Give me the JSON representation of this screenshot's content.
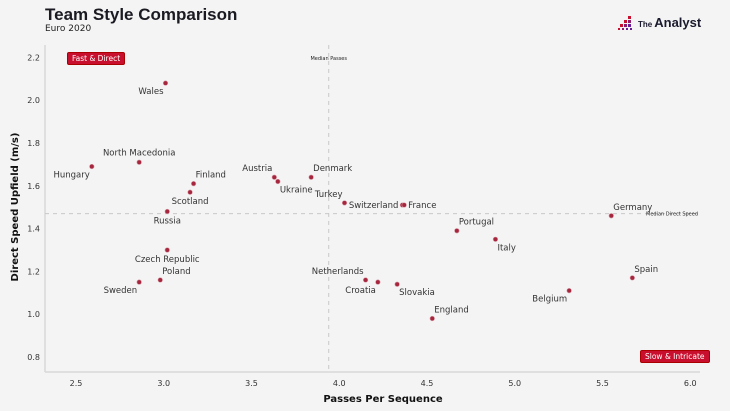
{
  "header": {
    "title": "Team Style Comparison",
    "subtitle": "Euro 2020",
    "brand": {
      "prefix": "The",
      "name": "Analyst"
    }
  },
  "colors": {
    "accent": "#c8102e",
    "point": "#a6263e",
    "grid": "#cccccc"
  },
  "chart_data": {
    "type": "scatter",
    "title": "Team Style Comparison",
    "subtitle": "Euro 2020",
    "xlabel": "Passes Per Sequence",
    "ylabel": "Direct Speed Upfield (m/s)",
    "xlim": [
      2.35,
      6.08
    ],
    "ylim": [
      0.73,
      2.27
    ],
    "xticks": [
      2.5,
      3.0,
      3.5,
      4.0,
      4.5,
      5.0,
      5.5,
      6.0
    ],
    "xtick_labels": [
      "2.5",
      "3.0",
      "3.5",
      "4.0",
      "4.5",
      "5.0",
      "5.5",
      "6.0"
    ],
    "yticks": [
      0.8,
      1.0,
      1.2,
      1.4,
      1.6,
      1.8,
      2.0,
      2.2
    ],
    "ytick_labels": [
      "0.8",
      "1.0",
      "1.2",
      "1.4",
      "1.6",
      "1.8",
      "2.0",
      "2.2"
    ],
    "grid": false,
    "reference_lines": [
      {
        "axis": "x",
        "value": 3.94,
        "label": "Median Passes"
      },
      {
        "axis": "y",
        "value": 1.47,
        "label": "Median Direct Speed"
      }
    ],
    "quadrant_labels": [
      {
        "text": "Fast & Direct",
        "position": "top-left"
      },
      {
        "text": "Slow & Intricate",
        "position": "bottom-right"
      }
    ],
    "points": [
      {
        "team": "Wales",
        "x": 3.01,
        "y": 2.08,
        "label_pos": "bottom-left"
      },
      {
        "team": "North Macedonia",
        "x": 2.86,
        "y": 1.71,
        "label_pos": "top"
      },
      {
        "team": "Hungary",
        "x": 2.59,
        "y": 1.69,
        "label_pos": "bottom-left"
      },
      {
        "team": "Finland",
        "x": 3.17,
        "y": 1.61,
        "label_pos": "top-right"
      },
      {
        "team": "Scotland",
        "x": 3.15,
        "y": 1.57,
        "label_pos": "bottom"
      },
      {
        "team": "Russia",
        "x": 3.02,
        "y": 1.48,
        "label_pos": "bottom"
      },
      {
        "team": "Czech Republic",
        "x": 3.02,
        "y": 1.3,
        "label_pos": "bottom"
      },
      {
        "team": "Poland",
        "x": 2.98,
        "y": 1.16,
        "label_pos": "top-right"
      },
      {
        "team": "Sweden",
        "x": 2.86,
        "y": 1.15,
        "label_pos": "bottom-left"
      },
      {
        "team": "Austria",
        "x": 3.63,
        "y": 1.64,
        "label_pos": "top-left"
      },
      {
        "team": "Ukraine",
        "x": 3.65,
        "y": 1.62,
        "label_pos": "bottom-right"
      },
      {
        "team": "Denmark",
        "x": 3.84,
        "y": 1.64,
        "label_pos": "top-right"
      },
      {
        "team": "Turkey",
        "x": 4.03,
        "y": 1.52,
        "label_pos": "top-left"
      },
      {
        "team": "Switzerland",
        "x": 4.36,
        "y": 1.51,
        "label_pos": "left"
      },
      {
        "team": "France",
        "x": 4.37,
        "y": 1.51,
        "label_pos": "right"
      },
      {
        "team": "Portugal",
        "x": 4.67,
        "y": 1.39,
        "label_pos": "top-right"
      },
      {
        "team": "Italy",
        "x": 4.89,
        "y": 1.35,
        "label_pos": "bottom-right"
      },
      {
        "team": "Germany",
        "x": 5.55,
        "y": 1.46,
        "label_pos": "top-right"
      },
      {
        "team": "Spain",
        "x": 5.67,
        "y": 1.17,
        "label_pos": "top-right"
      },
      {
        "team": "Belgium",
        "x": 5.31,
        "y": 1.11,
        "label_pos": "bottom-left"
      },
      {
        "team": "Netherlands",
        "x": 4.15,
        "y": 1.16,
        "label_pos": "top-left"
      },
      {
        "team": "Croatia",
        "x": 4.22,
        "y": 1.15,
        "label_pos": "bottom-left"
      },
      {
        "team": "Slovakia",
        "x": 4.33,
        "y": 1.14,
        "label_pos": "bottom-right"
      },
      {
        "team": "England",
        "x": 4.53,
        "y": 0.98,
        "label_pos": "top-right"
      }
    ]
  }
}
